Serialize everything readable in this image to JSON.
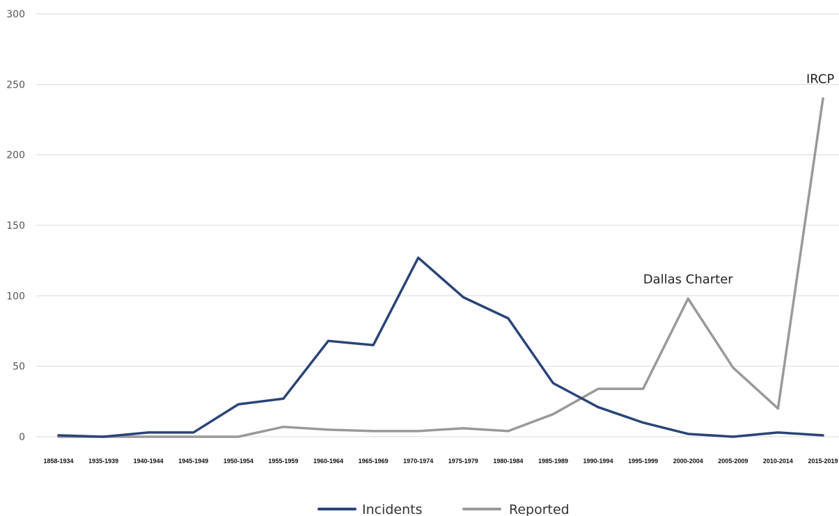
{
  "chart_data": {
    "type": "line",
    "categories": [
      "1858-1934",
      "1935-1939",
      "1940-1944",
      "1945-1949",
      "1950-1954",
      "1955-1959",
      "1960-1964",
      "1965-1969",
      "1970-1974",
      "1975-1979",
      "1980-1984",
      "1985-1989",
      "1990-1994",
      "1995-1999",
      "2000-2004",
      "2005-2009",
      "2010-2014",
      "2015-2019"
    ],
    "series": [
      {
        "name": "Incidents",
        "color": "#2a4478",
        "values": [
          1,
          0,
          3,
          3,
          23,
          27,
          68,
          65,
          127,
          99,
          84,
          38,
          21,
          10,
          2,
          0,
          3,
          1
        ]
      },
      {
        "name": "Reported",
        "color": "#999999",
        "values": [
          0,
          0,
          0,
          0,
          0,
          7,
          5,
          4,
          4,
          6,
          4,
          16,
          34,
          34,
          98,
          49,
          20,
          240
        ]
      }
    ],
    "ylim": [
      0,
      300
    ],
    "yticks": [
      0,
      50,
      100,
      150,
      200,
      250,
      300
    ],
    "grid": true,
    "legend_position": "bottom-center",
    "annotations": [
      {
        "text": "Dallas Charter",
        "category": "2000-2004",
        "y": 98
      },
      {
        "text": "IRCP",
        "category": "2015-2019",
        "y": 240
      }
    ]
  }
}
